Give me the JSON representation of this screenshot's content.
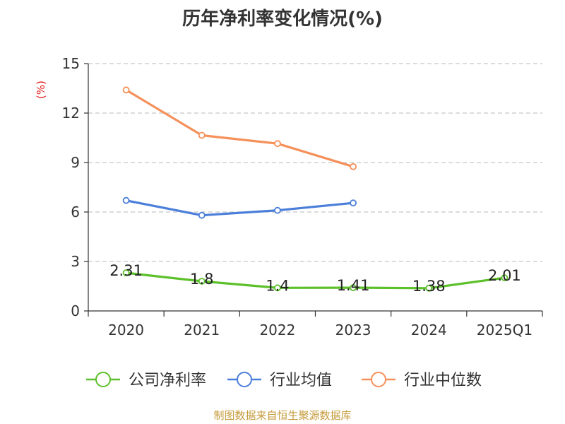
{
  "chart_data": {
    "type": "line",
    "title": "历年净利率变化情况(%)",
    "ylabel": "(%)",
    "categories": [
      "2020",
      "2021",
      "2022",
      "2023",
      "2024",
      "2025Q1"
    ],
    "ylim": [
      0,
      15
    ],
    "yticks": [
      0,
      3,
      6,
      9,
      12,
      15
    ],
    "grid": true,
    "legend_position": "bottom",
    "series": [
      {
        "name": "公司净利率",
        "color": "#5cc02a",
        "values": [
          2.31,
          1.8,
          1.4,
          1.41,
          1.38,
          2.01
        ],
        "labels": [
          "2.31",
          "1.8",
          "1.4",
          "1.41",
          "1.38",
          "2.01"
        ]
      },
      {
        "name": "行业均值",
        "color": "#4a7ed9",
        "values": [
          6.7,
          5.8,
          6.1,
          6.55,
          null,
          null
        ]
      },
      {
        "name": "行业中位数",
        "color": "#f5905a",
        "values": [
          13.4,
          10.65,
          10.15,
          8.75,
          null,
          null
        ]
      }
    ]
  },
  "source": "制图数据来自恒生聚源数据库"
}
